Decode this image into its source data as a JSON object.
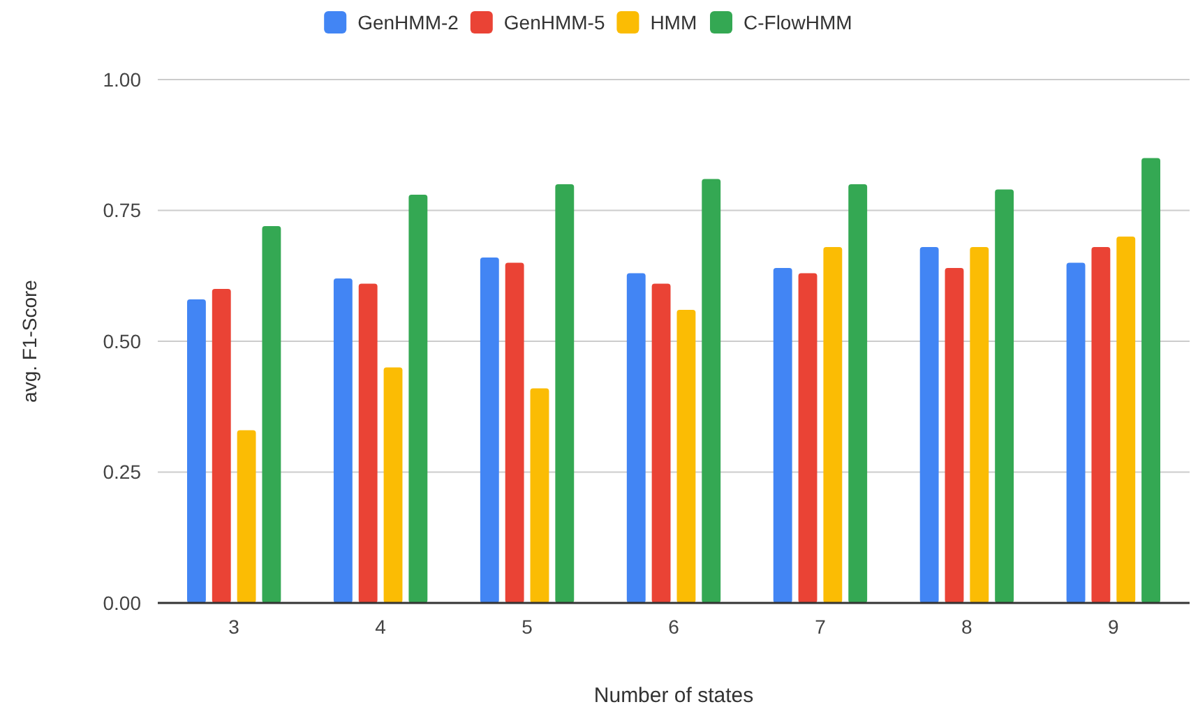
{
  "chart_data": {
    "type": "bar",
    "xlabel": "Number of states",
    "ylabel": "avg. F1-Score",
    "categories": [
      "3",
      "4",
      "5",
      "6",
      "7",
      "8",
      "9"
    ],
    "series": [
      {
        "name": "GenHMM-2",
        "color": "#4285f4",
        "values": [
          0.58,
          0.62,
          0.66,
          0.63,
          0.64,
          0.68,
          0.65
        ]
      },
      {
        "name": "GenHMM-5",
        "color": "#ea4335",
        "values": [
          0.6,
          0.61,
          0.65,
          0.61,
          0.63,
          0.64,
          0.68
        ]
      },
      {
        "name": "HMM",
        "color": "#fbbc04",
        "values": [
          0.33,
          0.45,
          0.41,
          0.56,
          0.68,
          0.68,
          0.7
        ]
      },
      {
        "name": "C-FlowHMM",
        "color": "#34a853",
        "values": [
          0.72,
          0.78,
          0.8,
          0.81,
          0.8,
          0.79,
          0.85
        ]
      }
    ],
    "ylim": [
      0,
      1
    ],
    "yticks": [
      {
        "value": 0,
        "label": "0.00"
      },
      {
        "value": 0.25,
        "label": "0.25"
      },
      {
        "value": 0.5,
        "label": "0.50"
      },
      {
        "value": 0.75,
        "label": "0.75"
      },
      {
        "value": 1,
        "label": "1.00"
      }
    ],
    "grid": "y",
    "legend": "top"
  }
}
